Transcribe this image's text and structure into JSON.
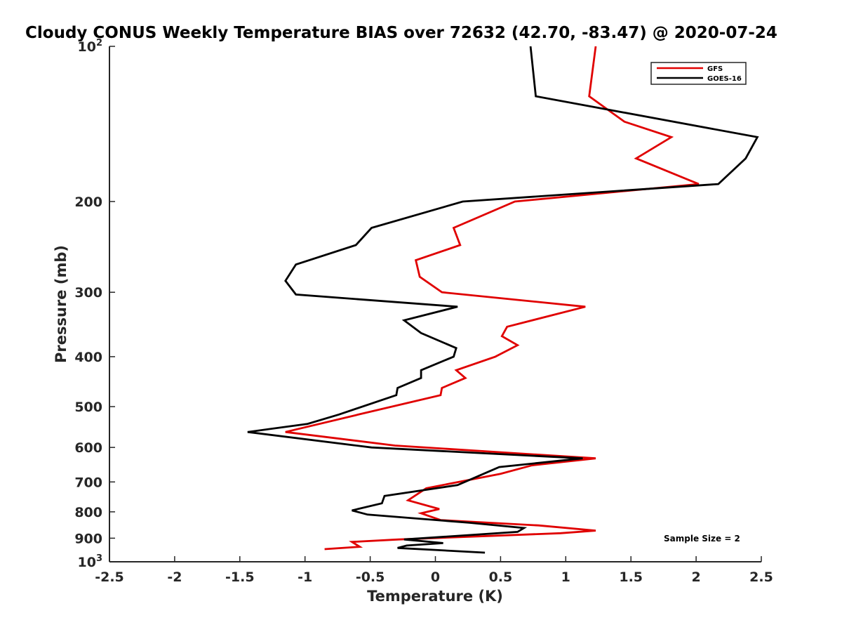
{
  "chart_data": {
    "type": "line",
    "title": "Cloudy CONUS Weekly Temperature BIAS over 72632 (42.70, -83.47) @ 2020-07-24",
    "xlabel": "Temperature (K)",
    "ylabel": "Pressure (mb)",
    "xlim": [
      -2.5,
      2.5
    ],
    "ylim": [
      100,
      1000
    ],
    "y_scale": "log",
    "y_reversed": true,
    "grid": false,
    "legend_position": "top-right",
    "x_ticks": [
      "-2.5",
      "-2",
      "-1.5",
      "-1",
      "-0.5",
      "0",
      "0.5",
      "1",
      "1.5",
      "2",
      "2.5"
    ],
    "y_ticks": [
      {
        "value": 100,
        "base": "10",
        "exp": "2"
      },
      {
        "value": 200,
        "base": "200",
        "exp": ""
      },
      {
        "value": 300,
        "base": "300",
        "exp": ""
      },
      {
        "value": 400,
        "base": "400",
        "exp": ""
      },
      {
        "value": 500,
        "base": "500",
        "exp": ""
      },
      {
        "value": 600,
        "base": "600",
        "exp": ""
      },
      {
        "value": 700,
        "base": "700",
        "exp": ""
      },
      {
        "value": 800,
        "base": "800",
        "exp": ""
      },
      {
        "value": 900,
        "base": "900",
        "exp": ""
      },
      {
        "value": 1000,
        "base": "10",
        "exp": "3"
      }
    ],
    "annotation": "Sample Size = 2",
    "series": [
      {
        "name": "GFS",
        "color": "#e00000",
        "points": [
          [
            1.23,
            100
          ],
          [
            1.18,
            125
          ],
          [
            1.45,
            140
          ],
          [
            1.81,
            150
          ],
          [
            1.54,
            165
          ],
          [
            2.02,
            185
          ],
          [
            0.61,
            200
          ],
          [
            0.14,
            225
          ],
          [
            0.19,
            243
          ],
          [
            -0.15,
            260
          ],
          [
            -0.12,
            280
          ],
          [
            0.05,
            300
          ],
          [
            1.15,
            320
          ],
          [
            0.55,
            350
          ],
          [
            0.51,
            365
          ],
          [
            0.63,
            380
          ],
          [
            0.46,
            400
          ],
          [
            0.16,
            425
          ],
          [
            0.23,
            440
          ],
          [
            0.05,
            460
          ],
          [
            0.04,
            475
          ],
          [
            -0.59,
            518
          ],
          [
            -1.15,
            560
          ],
          [
            -0.31,
            595
          ],
          [
            1.23,
            630
          ],
          [
            0.74,
            650
          ],
          [
            0.5,
            675
          ],
          [
            -0.07,
            720
          ],
          [
            -0.21,
            760
          ],
          [
            0.03,
            790
          ],
          [
            -0.11,
            805
          ],
          [
            0.04,
            830
          ],
          [
            0.79,
            850
          ],
          [
            1.23,
            870
          ],
          [
            0.96,
            880
          ],
          [
            -0.28,
            905
          ],
          [
            -0.64,
            915
          ],
          [
            -0.58,
            935
          ],
          [
            -0.85,
            945
          ]
        ]
      },
      {
        "name": "GOES-16",
        "color": "#000000",
        "points": [
          [
            0.73,
            100
          ],
          [
            0.77,
            125
          ],
          [
            2.47,
            150
          ],
          [
            2.38,
            165
          ],
          [
            2.17,
            185
          ],
          [
            0.21,
            200
          ],
          [
            -0.49,
            225
          ],
          [
            -0.61,
            243
          ],
          [
            -1.07,
            265
          ],
          [
            -1.15,
            285
          ],
          [
            -1.07,
            303
          ],
          [
            0.17,
            320
          ],
          [
            -0.24,
            340
          ],
          [
            -0.11,
            360
          ],
          [
            0.16,
            385
          ],
          [
            0.14,
            400
          ],
          [
            -0.11,
            425
          ],
          [
            -0.11,
            440
          ],
          [
            -0.29,
            460
          ],
          [
            -0.3,
            475
          ],
          [
            -0.74,
            518
          ],
          [
            -0.98,
            540
          ],
          [
            -1.44,
            560
          ],
          [
            -0.49,
            600
          ],
          [
            1.13,
            630
          ],
          [
            0.49,
            655
          ],
          [
            0.4,
            670
          ],
          [
            0.17,
            710
          ],
          [
            -0.39,
            745
          ],
          [
            -0.41,
            770
          ],
          [
            -0.64,
            795
          ],
          [
            -0.52,
            810
          ],
          [
            0.26,
            840
          ],
          [
            0.68,
            860
          ],
          [
            0.63,
            875
          ],
          [
            -0.24,
            905
          ],
          [
            0.06,
            920
          ],
          [
            -0.22,
            930
          ],
          [
            -0.29,
            940
          ],
          [
            0.38,
            960
          ]
        ]
      }
    ]
  }
}
